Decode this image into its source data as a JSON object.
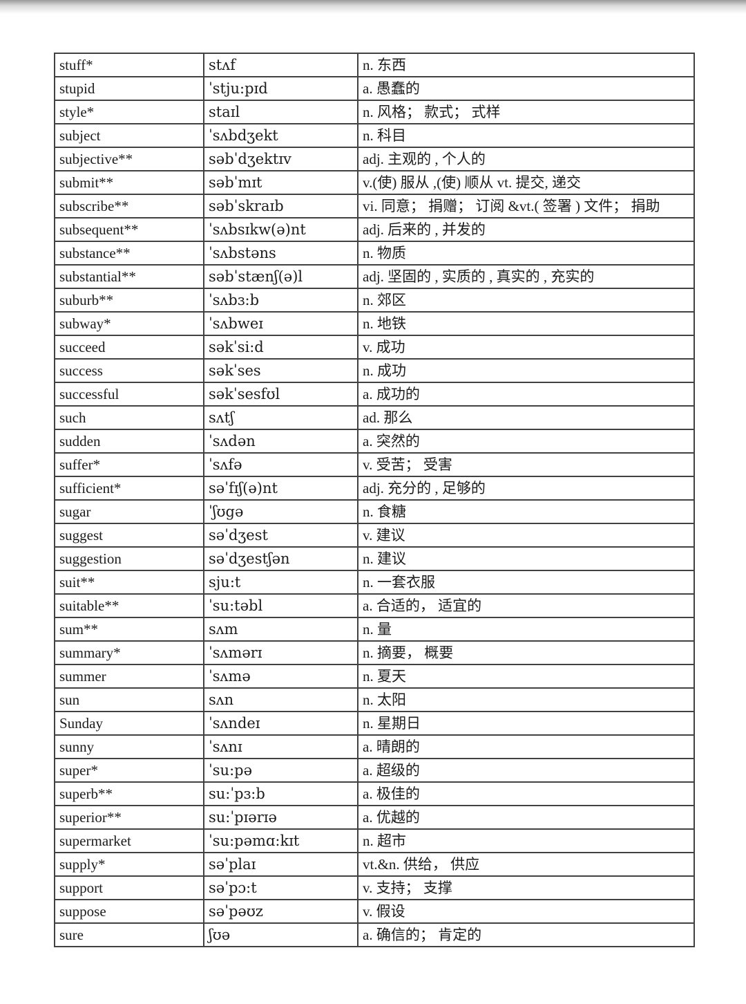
{
  "page": {
    "background_color": "#ffffff",
    "top_shadow_color": "#9a9a9a"
  },
  "table": {
    "border_color": "#414141",
    "text_color": "#1c1c1c",
    "columns": [
      "word",
      "phonetic",
      "meaning"
    ],
    "rows": [
      {
        "word": "stuff*",
        "phonetic": "stʌf",
        "meaning": "n. 东西"
      },
      {
        "word": "stupid",
        "phonetic": "ˈstju:pɪd",
        "meaning": "a. 愚蠢的"
      },
      {
        "word": "style*",
        "phonetic": "staɪl",
        "meaning": "n. 风格； 款式； 式样"
      },
      {
        "word": "subject",
        "phonetic": "ˈsʌbdʒekt",
        "meaning": "n. 科目"
      },
      {
        "word": "subjective**",
        "phonetic": "səbˈdʒektɪv",
        "meaning": "adj. 主观的 , 个人的"
      },
      {
        "word": "submit**",
        "phonetic": "səbˈmɪt",
        "meaning": "v.(使) 服从 ,(使) 顺从 vt. 提交, 递交"
      },
      {
        "word": "subscribe**",
        "phonetic": "səbˈskraɪb",
        "meaning": "vi. 同意； 捐赠； 订阅 &vt.( 签署 ) 文件； 捐助"
      },
      {
        "word": "subsequent**",
        "phonetic": "ˈsʌbsɪkw(ə)nt",
        "meaning": "adj. 后来的 , 并发的"
      },
      {
        "word": "substance**",
        "phonetic": "ˈsʌbstəns",
        "meaning": "n. 物质"
      },
      {
        "word": "substantial**",
        "phonetic": "səbˈstænʃ(ə)l",
        "meaning": "adj. 坚固的 , 实质的 , 真实的 , 充实的"
      },
      {
        "word": "suburb**",
        "phonetic": "ˈsʌbɜ:b",
        "meaning": "n. 郊区"
      },
      {
        "word": "subway*",
        "phonetic": "ˈsʌbweɪ",
        "meaning": "n. 地铁"
      },
      {
        "word": "succeed",
        "phonetic": "səkˈsi:d",
        "meaning": "v. 成功"
      },
      {
        "word": "success",
        "phonetic": "səkˈses",
        "meaning": "n. 成功"
      },
      {
        "word": "successful",
        "phonetic": "səkˈsesfʊl",
        "meaning": "a. 成功的"
      },
      {
        "word": "such",
        "phonetic": "sʌtʃ",
        "meaning": "ad. 那么"
      },
      {
        "word": "sudden",
        "phonetic": "ˈsʌdən",
        "meaning": "a. 突然的"
      },
      {
        "word": "suffer*",
        "phonetic": "ˈsʌfə",
        "meaning": "v. 受苦； 受害"
      },
      {
        "word": "sufficient*",
        "phonetic": "səˈfɪʃ(ə)nt",
        "meaning": "adj. 充分的 , 足够的"
      },
      {
        "word": "sugar",
        "phonetic": "ˈʃʊgə",
        "meaning": "n. 食糖"
      },
      {
        "word": "suggest",
        "phonetic": "səˈdʒest",
        "meaning": "v. 建议"
      },
      {
        "word": "suggestion",
        "phonetic": "səˈdʒestʃən",
        "meaning": "n. 建议"
      },
      {
        "word": "suit**",
        "phonetic": "sju:t",
        "meaning": "n. 一套衣服"
      },
      {
        "word": "suitable**",
        "phonetic": "ˈsu:təbl",
        "meaning": "a. 合适的， 适宜的"
      },
      {
        "word": "sum**",
        "phonetic": "sʌm",
        "meaning": "n. 量"
      },
      {
        "word": "summary*",
        "phonetic": "ˈsʌmərɪ",
        "meaning": "n. 摘要， 概要"
      },
      {
        "word": "summer",
        "phonetic": "ˈsʌmə",
        "meaning": "n. 夏天"
      },
      {
        "word": "sun",
        "phonetic": "sʌn",
        "meaning": "n. 太阳"
      },
      {
        "word": "Sunday",
        "phonetic": "ˈsʌndeɪ",
        "meaning": "n. 星期日"
      },
      {
        "word": "sunny",
        "phonetic": "ˈsʌnɪ",
        "meaning": "a. 晴朗的"
      },
      {
        "word": "super*",
        "phonetic": "ˈsu:pə",
        "meaning": "a. 超级的"
      },
      {
        "word": "superb**",
        "phonetic": "su:ˈpɜ:b",
        "meaning": "a. 极佳的"
      },
      {
        "word": "superior**",
        "phonetic": "su:ˈpɪərɪə",
        "meaning": "a. 优越的"
      },
      {
        "word": "supermarket",
        "phonetic": "ˈsu:pəmɑ:kɪt",
        "meaning": "n. 超市"
      },
      {
        "word": "supply*",
        "phonetic": "səˈplaɪ",
        "meaning": "vt.&n. 供给， 供应"
      },
      {
        "word": "support",
        "phonetic": "səˈpɔ:t",
        "meaning": "v. 支持； 支撑"
      },
      {
        "word": "suppose",
        "phonetic": "səˈpəʊz",
        "meaning": "v. 假设"
      },
      {
        "word": "sure",
        "phonetic": "ʃʊə",
        "meaning": "a. 确信的； 肯定的"
      }
    ]
  }
}
